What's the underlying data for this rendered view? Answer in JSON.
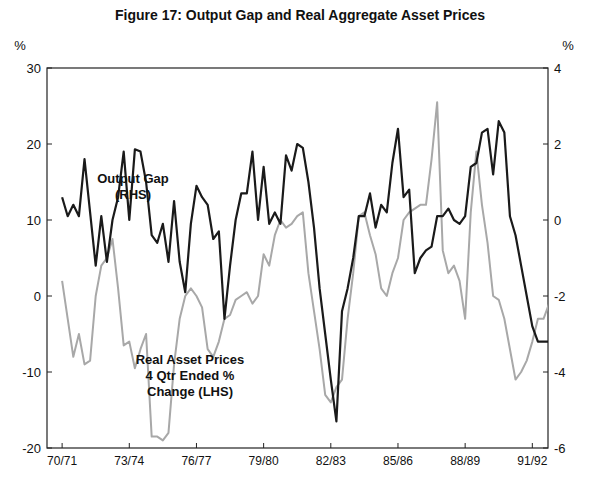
{
  "chart_data": {
    "type": "line",
    "title": "Figure 17: Output Gap and Real Aggregate Asset Prices",
    "ylabel": "%",
    "y2label": "%",
    "categories": [
      "70/71",
      null,
      null,
      null,
      null,
      null,
      null,
      null,
      null,
      null,
      null,
      null,
      "73/74",
      null,
      null,
      null,
      null,
      null,
      null,
      null,
      null,
      null,
      null,
      null,
      "76/77",
      null,
      null,
      null,
      null,
      null,
      null,
      null,
      null,
      null,
      null,
      null,
      "79/80",
      null,
      null,
      null,
      null,
      null,
      null,
      null,
      null,
      null,
      null,
      null,
      "82/83",
      null,
      null,
      null,
      null,
      null,
      null,
      null,
      null,
      null,
      null,
      null,
      "85/86",
      null,
      null,
      null,
      null,
      null,
      null,
      null,
      null,
      null,
      null,
      null,
      "88/89",
      null,
      null,
      null,
      null,
      null,
      null,
      null,
      null,
      null,
      null,
      null,
      "91/92",
      null,
      null,
      null
    ],
    "series": [
      {
        "name": "Output Gap",
        "color": "#1a1a1a",
        "axis": "y2",
        "line_style": "solid",
        "values": [
          0.6,
          0.1,
          0.4,
          0.1,
          1.6,
          0.2,
          -1.2,
          0.1,
          -1.1,
          0,
          0.6,
          1.8,
          0,
          1.86,
          1.8,
          1.0,
          -0.4,
          -0.6,
          -0.1,
          -1.1,
          0.5,
          -1.1,
          -1.9,
          -0.1,
          0.9,
          0.6,
          0.4,
          -0.5,
          -0.3,
          -2.6,
          -1.2,
          0,
          0.7,
          0.7,
          1.8,
          0,
          1.4,
          -0.1,
          0.2,
          -0.1,
          1.7,
          1.3,
          2.0,
          1.9,
          1.0,
          -0.2,
          -1.8,
          -3.0,
          -4.2,
          -5.3,
          -2.4,
          -1.8,
          -1.0,
          0.1,
          0.1,
          0.7,
          -0.2,
          0.4,
          0.2,
          1.5,
          2.4,
          0.6,
          0.8,
          -1.4,
          -1.0,
          -0.8,
          -0.7,
          0.1,
          0.1,
          0.3,
          0,
          -0.1,
          0.1,
          1.4,
          1.5,
          2.3,
          2.4,
          1.2,
          2.6,
          2.3,
          0.1,
          -0.4,
          -1.2,
          -2.0,
          -2.8,
          -3.2,
          -3.2,
          -3.2
        ]
      },
      {
        "name": "Real Asset Prices",
        "color": "#a8a8a8",
        "line_style": "solid",
        "values": [
          2,
          -3,
          -8,
          -5,
          -9,
          -8.5,
          0,
          4,
          5,
          7.5,
          1,
          -6.5,
          -6,
          -9.5,
          -7,
          -5,
          -18.5,
          -18.5,
          -19,
          -18,
          -9,
          -3,
          0,
          1,
          0,
          -1.5,
          -7,
          -8,
          -6,
          -3,
          -2.5,
          -0.5,
          0,
          0.5,
          -1,
          0,
          5.5,
          4,
          8,
          10,
          9,
          9.5,
          10.5,
          11,
          3,
          -2,
          -7,
          -13,
          -14,
          -12,
          -11,
          -3,
          3,
          10.5,
          11,
          8,
          5.5,
          1,
          0,
          3,
          5,
          10,
          11,
          11.5,
          12,
          12,
          18,
          25.5,
          6,
          3,
          4,
          2,
          -3,
          11,
          19,
          12,
          7,
          0,
          -0.5,
          -3,
          -7,
          -11,
          -10,
          -8.5,
          -6,
          -3,
          -3,
          -1
        ]
      }
    ],
    "annotations": [
      "(RHS)",
      "4 Qtr Ended %",
      "Change (LHS)"
    ],
    "ylim": [
      -20,
      30
    ],
    "yticks": [
      -20,
      -10,
      0,
      10,
      20,
      30
    ],
    "y2lim": [
      -6,
      4
    ],
    "y2ticks": [
      -6,
      -4,
      -2,
      0,
      2,
      4
    ],
    "grid": false
  }
}
